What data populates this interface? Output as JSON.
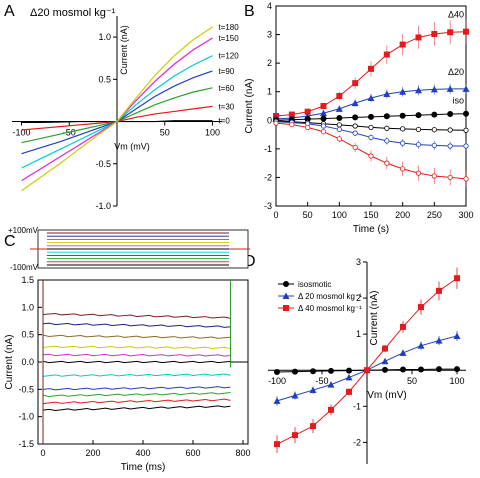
{
  "figure": {
    "panel_letters": [
      "A",
      "B",
      "C",
      "D"
    ]
  },
  "chart_data": [
    {
      "panel": "A",
      "type": "line",
      "title": "Δ20 mosmol kg⁻¹",
      "xlabel": "Vm (mV)",
      "ylabel": "Current (nA)",
      "xlim": [
        -110,
        110
      ],
      "ylim": [
        -1.0,
        1.25
      ],
      "xticks": [
        -100,
        -50,
        50,
        100
      ],
      "yticks": [
        -1.0,
        -0.5,
        0.5,
        1.0
      ],
      "x": [
        -100,
        -80,
        -60,
        -40,
        -20,
        0,
        20,
        40,
        60,
        80,
        100
      ],
      "series": [
        {
          "name": "t=0",
          "color": "#000000",
          "values": [
            -0.01,
            -0.01,
            -0.005,
            0,
            0,
            0,
            0,
            0,
            0.01,
            0.01,
            0.01
          ]
        },
        {
          "name": "t=30",
          "color": "#e41a1c",
          "values": [
            -0.1,
            -0.08,
            -0.06,
            -0.04,
            -0.02,
            0,
            0.05,
            0.09,
            0.12,
            0.15,
            0.18
          ]
        },
        {
          "name": "t=60",
          "color": "#2ca02c",
          "values": [
            -0.25,
            -0.2,
            -0.15,
            -0.1,
            -0.05,
            0,
            0.1,
            0.2,
            0.28,
            0.35,
            0.4
          ]
        },
        {
          "name": "t=90",
          "color": "#1f3fbf",
          "values": [
            -0.38,
            -0.31,
            -0.24,
            -0.16,
            -0.08,
            0,
            0.15,
            0.3,
            0.42,
            0.52,
            0.6
          ]
        },
        {
          "name": "t=120",
          "color": "#00cccc",
          "values": [
            -0.55,
            -0.44,
            -0.33,
            -0.22,
            -0.11,
            0,
            0.2,
            0.38,
            0.54,
            0.67,
            0.78
          ]
        },
        {
          "name": "t=150",
          "color": "#e020e0",
          "values": [
            -0.7,
            -0.56,
            -0.42,
            -0.28,
            -0.14,
            0,
            0.25,
            0.48,
            0.68,
            0.85,
            0.99
          ]
        },
        {
          "name": "t=180",
          "color": "#cccc00",
          "values": [
            -0.82,
            -0.66,
            -0.5,
            -0.33,
            -0.16,
            0,
            0.28,
            0.55,
            0.78,
            0.97,
            1.12
          ]
        }
      ]
    },
    {
      "panel": "B",
      "type": "line",
      "xlabel": "Time (s)",
      "ylabel": "Current (nA)",
      "xlim": [
        0,
        300
      ],
      "ylim": [
        -3,
        4
      ],
      "xticks": [
        0,
        50,
        100,
        150,
        200,
        250,
        300
      ],
      "yticks": [
        -3,
        -2,
        -1,
        0,
        1,
        2,
        3,
        4
      ],
      "x": [
        0,
        25,
        50,
        75,
        100,
        125,
        150,
        175,
        200,
        225,
        250,
        275,
        300
      ],
      "series": [
        {
          "name": "Δ40",
          "color": "#e41a1c",
          "values": [
            0.15,
            0.2,
            0.3,
            0.5,
            0.85,
            1.3,
            1.8,
            2.3,
            2.65,
            2.9,
            3.02,
            3.08,
            3.1
          ]
        },
        {
          "name": "Δ20",
          "color": "#1f3fbf",
          "values": [
            0.05,
            0.08,
            0.15,
            0.25,
            0.4,
            0.6,
            0.78,
            0.92,
            1.0,
            1.05,
            1.08,
            1.1,
            1.1
          ]
        },
        {
          "name": "iso",
          "color": "#000000",
          "values": [
            0.0,
            0.02,
            0.04,
            0.06,
            0.08,
            0.1,
            0.12,
            0.14,
            0.16,
            0.18,
            0.2,
            0.22,
            0.23
          ]
        },
        {
          "name": "",
          "color": "#000000",
          "values": [
            -0.02,
            -0.05,
            -0.08,
            -0.12,
            -0.16,
            -0.2,
            -0.25,
            -0.28,
            -0.3,
            -0.32,
            -0.33,
            -0.34,
            -0.35
          ]
        },
        {
          "name": "",
          "color": "#1f3fbf",
          "values": [
            -0.05,
            -0.08,
            -0.12,
            -0.2,
            -0.32,
            -0.45,
            -0.6,
            -0.72,
            -0.8,
            -0.85,
            -0.88,
            -0.9,
            -0.9
          ]
        },
        {
          "name": "",
          "color": "#e41a1c",
          "values": [
            -0.1,
            -0.15,
            -0.25,
            -0.4,
            -0.65,
            -0.95,
            -1.25,
            -1.5,
            -1.7,
            -1.85,
            -1.95,
            -2.0,
            -2.05
          ]
        }
      ]
    },
    {
      "panel": "C",
      "type": "line",
      "xlabel": "Time (ms)",
      "ylabel": "Current (nA)",
      "xlim": [
        -20,
        820
      ],
      "ylim": [
        -1.5,
        1.5
      ],
      "xticks": [
        0,
        200,
        400,
        600,
        800
      ],
      "yticks": [
        -1.5,
        -1.0,
        -0.5,
        0.0,
        0.5,
        1.0,
        1.5
      ],
      "protocol_labels": [
        "+100mV",
        "-100mV"
      ],
      "pulse_end_ms": 750,
      "step_mV": [
        100,
        80,
        60,
        40,
        20,
        0,
        -20,
        -40,
        -60,
        -80,
        -100
      ],
      "step_currents": [
        0.88,
        0.7,
        0.48,
        0.28,
        0.13,
        0.0,
        -0.25,
        -0.5,
        -0.62,
        -0.75,
        -0.88
      ],
      "trace_colors": [
        "#7b1f1f",
        "#1f1f7b",
        "#8b6b1f",
        "#cccc00",
        "#cc33cc",
        "#000000",
        "#00cccc",
        "#1f3fbf",
        "#2ca02c",
        "#e41a1c",
        "#000000"
      ]
    },
    {
      "panel": "D",
      "type": "line",
      "xlabel": "Vm (mV)",
      "ylabel": "Current (nA)",
      "xlim": [
        -110,
        110
      ],
      "ylim": [
        -2.6,
        3.0
      ],
      "xticks": [
        -100,
        -50,
        50,
        100
      ],
      "yticks": [
        -2,
        -1,
        1,
        2,
        3
      ],
      "legend": "top-left",
      "x": [
        -100,
        -80,
        -60,
        -40,
        -20,
        0,
        20,
        40,
        60,
        80,
        100
      ],
      "series": [
        {
          "name": "isosmotic",
          "color": "#000000",
          "marker": "circle",
          "values": [
            -0.05,
            -0.04,
            -0.03,
            -0.02,
            -0.01,
            0,
            0.01,
            0.02,
            0.02,
            0.03,
            0.03
          ]
        },
        {
          "name": "Δ 20 mosmol kg⁻¹",
          "color": "#1f3fbf",
          "marker": "triangle",
          "values": [
            -0.85,
            -0.7,
            -0.55,
            -0.4,
            -0.2,
            0,
            0.25,
            0.48,
            0.68,
            0.82,
            0.95
          ]
        },
        {
          "name": "Δ 40 mosmol kg⁻¹",
          "color": "#e41a1c",
          "marker": "square",
          "values": [
            -2.05,
            -1.8,
            -1.55,
            -1.1,
            -0.6,
            0,
            0.6,
            1.2,
            1.75,
            2.2,
            2.55
          ]
        }
      ]
    }
  ]
}
